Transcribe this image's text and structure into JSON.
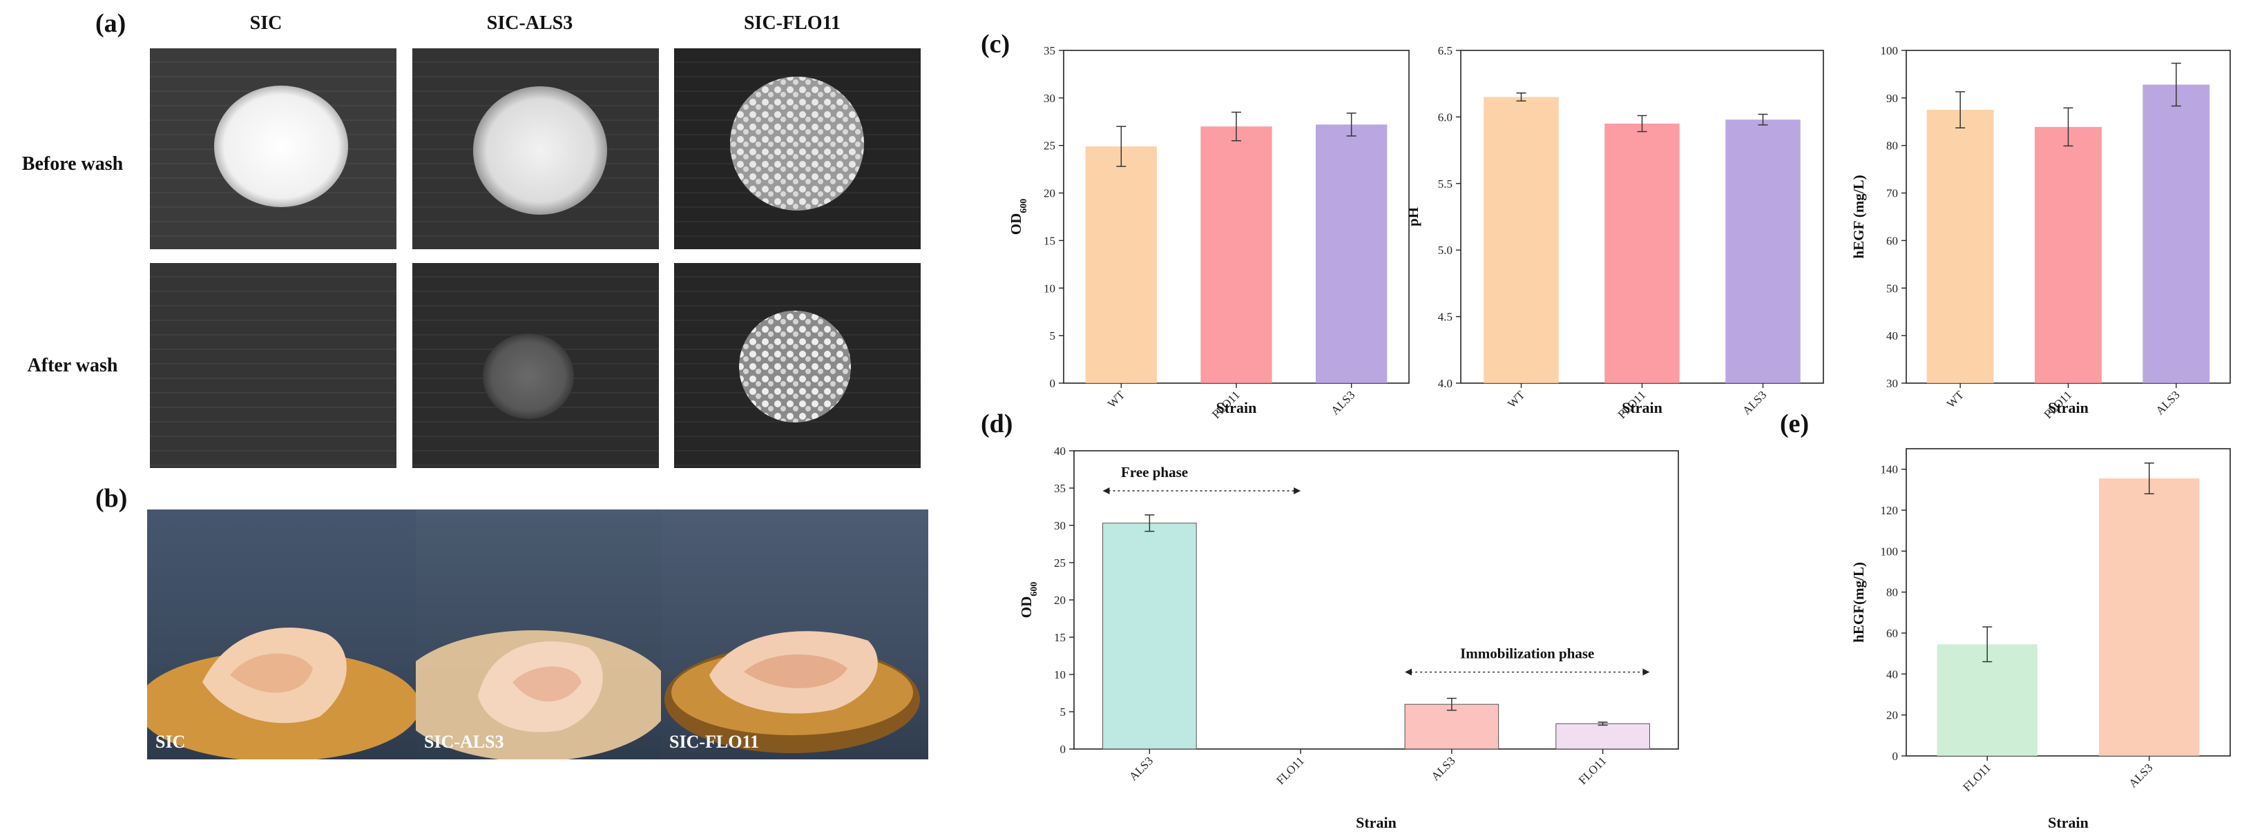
{
  "panel_labels": {
    "a": "(a)",
    "b": "(b)",
    "c": "(c)",
    "d": "(d)",
    "e": "(e)"
  },
  "panel_a": {
    "columns": [
      "SIC",
      "SIC-ALS3",
      "SIC-FLO11"
    ],
    "rows": [
      "Before wash",
      "After wash"
    ]
  },
  "panel_b": {
    "flask_labels": [
      "SIC",
      "SIC-ALS3",
      "SIC-FLO11"
    ]
  },
  "chart_data": [
    {
      "id": "c1",
      "type": "bar",
      "categories": [
        "WT",
        "FLO11",
        "ALS3"
      ],
      "values": [
        24.9,
        27.0,
        27.2
      ],
      "errors": [
        2.1,
        1.5,
        1.2
      ],
      "colors": [
        "#FBCB9A",
        "#FC8C93",
        "#AE98DC"
      ],
      "ylabel_main": "OD",
      "ylabel_sub": "600",
      "xlabel": "Strain",
      "ylim": [
        0,
        35
      ],
      "yticks": [
        0,
        5,
        10,
        15,
        20,
        25,
        30,
        35
      ],
      "tick_labels": [
        "0",
        "5",
        "10",
        "15",
        "20",
        "25",
        "30",
        "35"
      ]
    },
    {
      "id": "c2",
      "type": "bar",
      "categories": [
        "WT",
        "FLO11",
        "ALS3"
      ],
      "values": [
        6.15,
        5.95,
        5.98
      ],
      "errors": [
        0.03,
        0.06,
        0.04
      ],
      "colors": [
        "#FBCB9A",
        "#FC8C93",
        "#AE98DC"
      ],
      "ylabel_main": "pH",
      "ylabel_sub": "",
      "xlabel": "Strain",
      "ylim": [
        4.0,
        6.5
      ],
      "yticks": [
        4.0,
        4.5,
        5.0,
        5.5,
        6.0,
        6.5
      ],
      "tick_labels": [
        "4.0",
        "4.5",
        "5.0",
        "5.5",
        "6.0",
        "6.5"
      ]
    },
    {
      "id": "c3",
      "type": "bar",
      "categories": [
        "WT",
        "FLO11",
        "ALS3"
      ],
      "values": [
        87.5,
        83.9,
        92.8
      ],
      "errors": [
        3.8,
        4.0,
        4.5
      ],
      "colors": [
        "#FBCB9A",
        "#FC8C93",
        "#AE98DC"
      ],
      "ylabel_main": "hEGF (mg/L)",
      "ylabel_sub": "",
      "xlabel": "Strain",
      "ylim": [
        30,
        100
      ],
      "yticks": [
        30,
        40,
        50,
        60,
        70,
        80,
        90,
        100
      ],
      "tick_labels": [
        "30",
        "40",
        "50",
        "60",
        "70",
        "80",
        "90",
        "100"
      ]
    },
    {
      "id": "d",
      "type": "bar",
      "categories": [
        "ALS3",
        "FLO11",
        "ALS3",
        "FLO11"
      ],
      "values": [
        30.3,
        0,
        6.0,
        3.4
      ],
      "errors": [
        1.1,
        0,
        0.8,
        0.2
      ],
      "colors": [
        "#B2E5DD",
        "#ffffff",
        "#FBB7B1",
        "#EED8EE"
      ],
      "ylabel_main": "OD",
      "ylabel_sub": "600",
      "xlabel": "Strain",
      "ylim": [
        0,
        40
      ],
      "yticks": [
        0,
        5,
        10,
        15,
        20,
        25,
        30,
        35,
        40
      ],
      "tick_labels": [
        "0",
        "5",
        "10",
        "15",
        "20",
        "25",
        "30",
        "35",
        "40"
      ],
      "annotations": [
        {
          "text": "Free phase",
          "from_category": 0,
          "to_category": 1
        },
        {
          "text": "Immobilization phase",
          "from_category": 2,
          "to_category": 3
        }
      ]
    },
    {
      "id": "e",
      "type": "bar",
      "categories": [
        "FLO11",
        "ALS3"
      ],
      "values": [
        54.5,
        135.5
      ],
      "errors": [
        8.5,
        7.5
      ],
      "colors": [
        "#C6ECCF",
        "#FBC4A8"
      ],
      "ylabel_main": "hEGF(mg/L)",
      "ylabel_sub": "",
      "xlabel": "Strain",
      "ylim": [
        0,
        150
      ],
      "yticks": [
        0,
        20,
        40,
        60,
        80,
        100,
        120,
        140
      ],
      "tick_labels": [
        "0",
        "20",
        "40",
        "60",
        "80",
        "100",
        "120",
        "140"
      ]
    }
  ]
}
